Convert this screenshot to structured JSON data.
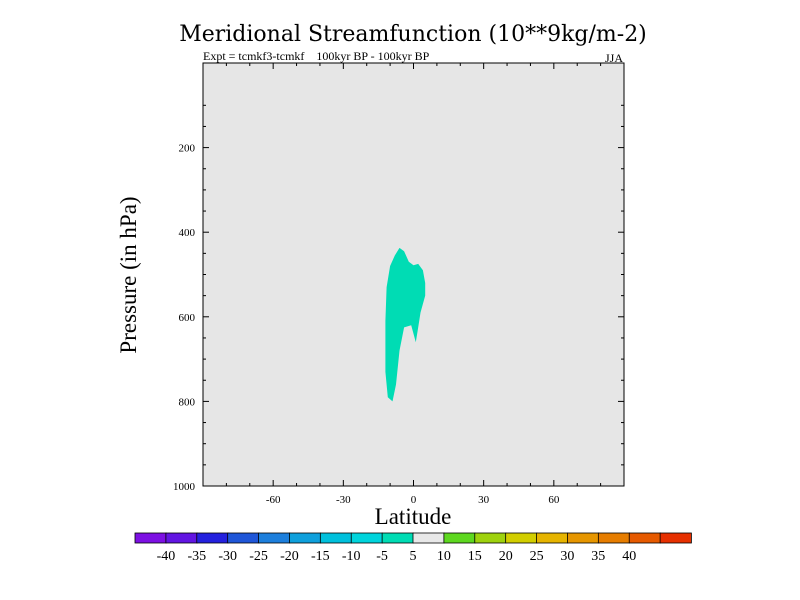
{
  "chart_data": {
    "type": "contour",
    "title": "Meridional Streamfunction (10**9kg/m-2)",
    "subtitle_left": "Expt = tcmkf3-tcmkf    100kyr BP - 100kyr BP",
    "subtitle_right": "JJA",
    "xlabel": "Latitude",
    "ylabel": "Pressure (in hPa)",
    "xlim": [
      -90,
      90
    ],
    "ylim": [
      1000,
      0
    ],
    "x_ticks": [
      {
        "value": -60,
        "label": "-60"
      },
      {
        "value": -30,
        "label": "-30"
      },
      {
        "value": 0,
        "label": "0"
      },
      {
        "value": 30,
        "label": "30"
      },
      {
        "value": 60,
        "label": "60"
      }
    ],
    "y_ticks": [
      {
        "value": 200,
        "label": "200"
      },
      {
        "value": 400,
        "label": "400"
      },
      {
        "value": 600,
        "label": "600"
      },
      {
        "value": 800,
        "label": "800"
      },
      {
        "value": 1000,
        "label": "1000"
      }
    ],
    "background_color": "#e6e6e6",
    "contour_regions": [
      {
        "range": "-10 to -5",
        "color": "#00dcb4",
        "points": [
          [
            -12,
            730
          ],
          [
            -12,
            610
          ],
          [
            -11.5,
            530
          ],
          [
            -10,
            480
          ],
          [
            -8,
            455
          ],
          [
            -6,
            437
          ],
          [
            -4,
            445
          ],
          [
            -2,
            470
          ],
          [
            0,
            478
          ],
          [
            2,
            475
          ],
          [
            4,
            490
          ],
          [
            5,
            520
          ],
          [
            5,
            550
          ],
          [
            3,
            590
          ],
          [
            2,
            625
          ],
          [
            1,
            660
          ],
          [
            -1,
            620
          ],
          [
            -4,
            625
          ],
          [
            -6,
            680
          ],
          [
            -7.5,
            760
          ],
          [
            -9,
            800
          ],
          [
            -11,
            790
          ]
        ]
      }
    ],
    "colorbar": {
      "colors": [
        "#7d10e3",
        "#6215e2",
        "#2421de",
        "#1f56d8",
        "#1d7fdc",
        "#0fa0dc",
        "#00c0dc",
        "#00d4dc",
        "#00dcb4",
        "#e8e8e8",
        "#5ed820",
        "#9ed20e",
        "#d2ce00",
        "#e6b400",
        "#e69600",
        "#e67d00",
        "#e65a00",
        "#e63000"
      ],
      "tick_labels": [
        "-40",
        "-35",
        "-30",
        "-25",
        "-20",
        "-15",
        "-10",
        "-5",
        "5",
        "10",
        "15",
        "20",
        "25",
        "30",
        "35",
        "40"
      ]
    }
  }
}
